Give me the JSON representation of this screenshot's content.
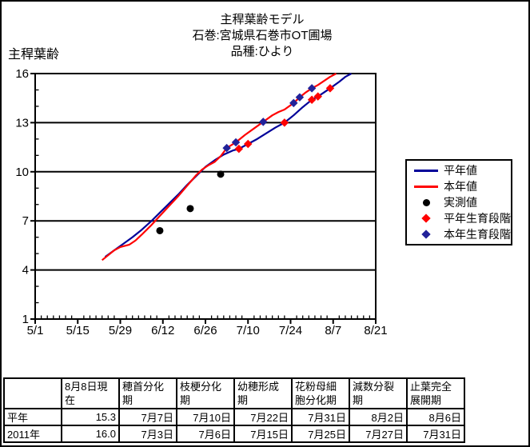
{
  "title": {
    "line1": "主稈葉齢モデル",
    "line2": "石巻:宮城県石巻市OT圃場",
    "line3": "品種:ひより"
  },
  "chart_data": {
    "type": "line",
    "title": "主稈葉齢モデル",
    "ylabel": "主稈葉齢",
    "y_axis": {
      "min": 1,
      "max": 16,
      "major_ticks": [
        1,
        4,
        7,
        10,
        13,
        16
      ],
      "minor_step": 1,
      "gridlines": true
    },
    "x_axis": {
      "start": "5/1",
      "end": "8/21",
      "major_tick_labels": [
        "5/1",
        "5/15",
        "5/29",
        "6/12",
        "6/26",
        "7/10",
        "7/24",
        "8/7",
        "8/21"
      ],
      "minor_step_days": 2
    },
    "colors": {
      "normal_year": "#000099",
      "this_year": "#FF0000",
      "measured": "#000000",
      "normal_stage": "#FF0000",
      "this_stage": "#222299"
    },
    "series": [
      {
        "id": "normal-year-line",
        "name": "平年値",
        "kind": "line",
        "color": "#000099",
        "points": [
          [
            "5/24",
            4.8
          ],
          [
            "5/27",
            5.2
          ],
          [
            "5/30",
            5.6
          ],
          [
            "6/2",
            6.0
          ],
          [
            "6/5",
            6.45
          ],
          [
            "6/8",
            6.95
          ],
          [
            "6/11",
            7.5
          ],
          [
            "6/14",
            8.05
          ],
          [
            "6/17",
            8.6
          ],
          [
            "6/20",
            9.2
          ],
          [
            "6/23",
            9.75
          ],
          [
            "6/26",
            10.3
          ],
          [
            "6/29",
            10.7
          ],
          [
            "7/2",
            11.05
          ],
          [
            "7/5",
            11.3
          ],
          [
            "7/7",
            11.4
          ],
          [
            "7/10",
            11.7
          ],
          [
            "7/13",
            12.0
          ],
          [
            "7/16",
            12.35
          ],
          [
            "7/19",
            12.7
          ],
          [
            "7/22",
            13.0
          ],
          [
            "7/25",
            13.45
          ],
          [
            "7/28",
            13.95
          ],
          [
            "7/31",
            14.4
          ],
          [
            "8/2",
            14.6
          ],
          [
            "8/4",
            14.85
          ],
          [
            "8/6",
            15.1
          ],
          [
            "8/9",
            15.5
          ],
          [
            "8/11",
            15.8
          ],
          [
            "8/13",
            16.0
          ]
        ]
      },
      {
        "id": "this-year-line",
        "name": "本年値",
        "kind": "line",
        "color": "#FF0000",
        "points": [
          [
            "5/23",
            4.6
          ],
          [
            "5/25",
            4.9
          ],
          [
            "5/27",
            5.2
          ],
          [
            "5/29",
            5.4
          ],
          [
            "6/1",
            5.55
          ],
          [
            "6/3",
            5.8
          ],
          [
            "6/5",
            6.15
          ],
          [
            "6/8",
            6.7
          ],
          [
            "6/11",
            7.3
          ],
          [
            "6/14",
            7.9
          ],
          [
            "6/17",
            8.5
          ],
          [
            "6/20",
            9.15
          ],
          [
            "6/23",
            9.8
          ],
          [
            "6/25",
            10.15
          ],
          [
            "6/27",
            10.4
          ],
          [
            "6/29",
            10.6
          ],
          [
            "7/1",
            10.95
          ],
          [
            "7/3",
            11.45
          ],
          [
            "7/6",
            11.8
          ],
          [
            "7/9",
            12.25
          ],
          [
            "7/12",
            12.65
          ],
          [
            "7/15",
            13.05
          ],
          [
            "7/18",
            13.45
          ],
          [
            "7/20",
            13.65
          ],
          [
            "7/22",
            13.8
          ],
          [
            "7/25",
            14.2
          ],
          [
            "7/27",
            14.55
          ],
          [
            "7/29",
            14.85
          ],
          [
            "7/31",
            15.1
          ],
          [
            "8/2",
            15.3
          ],
          [
            "8/4",
            15.55
          ],
          [
            "8/6",
            15.8
          ],
          [
            "8/8",
            16.0
          ]
        ]
      },
      {
        "id": "measured-values",
        "name": "実測値",
        "kind": "scatter",
        "marker": "circle",
        "color": "#000000",
        "points": [
          [
            "6/11",
            6.4
          ],
          [
            "6/21",
            7.75
          ],
          [
            "7/1",
            9.85
          ]
        ]
      },
      {
        "id": "normal-year-growth-stages",
        "name": "平年生育段階",
        "kind": "scatter",
        "marker": "diamond",
        "color": "#FF0000",
        "points": [
          [
            "7/7",
            11.4
          ],
          [
            "7/10",
            11.7
          ],
          [
            "7/22",
            13.0
          ],
          [
            "7/31",
            14.4
          ],
          [
            "8/2",
            14.6
          ],
          [
            "8/6",
            15.1
          ]
        ]
      },
      {
        "id": "this-year-growth-stages",
        "name": "本年生育段階",
        "kind": "scatter",
        "marker": "diamond",
        "color": "#222299",
        "points": [
          [
            "7/3",
            11.45
          ],
          [
            "7/6",
            11.8
          ],
          [
            "7/15",
            13.05
          ],
          [
            "7/25",
            14.2
          ],
          [
            "7/27",
            14.55
          ],
          [
            "7/31",
            15.1
          ]
        ]
      }
    ],
    "legend": {
      "position": "right",
      "items": [
        {
          "label": "平年値",
          "swatch": "line",
          "color": "#000099"
        },
        {
          "label": "本年値",
          "swatch": "line",
          "color": "#FF0000"
        },
        {
          "label": "実測値",
          "swatch": "circle",
          "color": "#000000"
        },
        {
          "label": "平年生育段階",
          "swatch": "diamond",
          "color": "#FF0000"
        },
        {
          "label": "本年生育段階",
          "swatch": "diamond",
          "color": "#222299"
        }
      ]
    }
  },
  "table": {
    "headers": [
      "",
      "8月8日現\n在",
      "穂首分化\n期",
      "枝梗分化\n期",
      "幼穂形成\n期",
      "花粉母細\n胞分化期",
      "減数分裂\n期",
      "止葉完全\n展開期"
    ],
    "rows": [
      {
        "label": "平年",
        "values": [
          "15.3",
          "7月7日",
          "7月10日",
          "7月22日",
          "7月31日",
          "8月2日",
          "8月6日"
        ]
      },
      {
        "label": "2011年",
        "values": [
          "16.0",
          "7月3日",
          "7月6日",
          "7月15日",
          "7月25日",
          "7月27日",
          "7月31日"
        ]
      }
    ]
  }
}
